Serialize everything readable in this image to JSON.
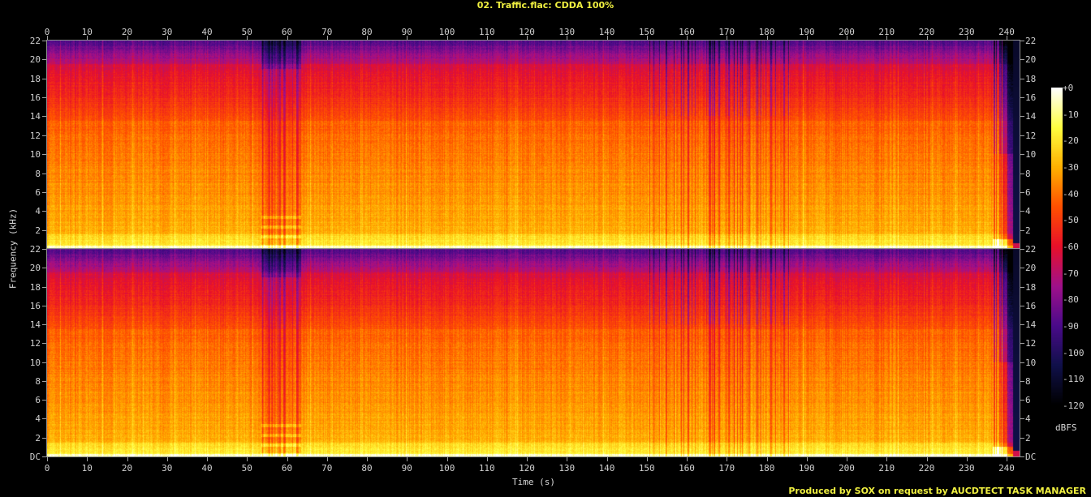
{
  "title": "02. Traffic.flac: CDDA 100%",
  "footer": "Produced by SOX on request by AUCDTECT TASK MANAGER",
  "chart_data": {
    "type": "heatmap",
    "subtype": "spectrogram",
    "title": "02. Traffic.flac: CDDA 100%",
    "xlabel": "Time (s)",
    "ylabel": "Frequency (kHz)",
    "channels": 2,
    "xlim": [
      0,
      243
    ],
    "ylim": [
      0,
      22
    ],
    "x_ticks": [
      "0",
      "10",
      "20",
      "30",
      "40",
      "50",
      "60",
      "70",
      "80",
      "90",
      "100",
      "110",
      "120",
      "130",
      "140",
      "150",
      "160",
      "170",
      "180",
      "190",
      "200",
      "210",
      "220",
      "230",
      "240"
    ],
    "y_ticks_upper": [
      "22",
      "20",
      "18",
      "16",
      "14",
      "12",
      "10",
      "8",
      "6",
      "4",
      "2"
    ],
    "y_ticks_lower": [
      "22",
      "20",
      "18",
      "16",
      "14",
      "12",
      "10",
      "8",
      "6",
      "4",
      "2",
      "DC"
    ],
    "colorbar": {
      "label": "dBFS",
      "range": [
        -120,
        0
      ],
      "ticks": [
        "+0",
        "-10",
        "-20",
        "-30",
        "-40",
        "-50",
        "-60",
        "-70",
        "-80",
        "-90",
        "-100",
        "-110",
        "-120"
      ],
      "colormap": [
        "#000000",
        "#10104a",
        "#4a0a8a",
        "#a0108a",
        "#e8102a",
        "#ff5000",
        "#ffb000",
        "#ffff40",
        "#ffffff"
      ]
    }
  }
}
